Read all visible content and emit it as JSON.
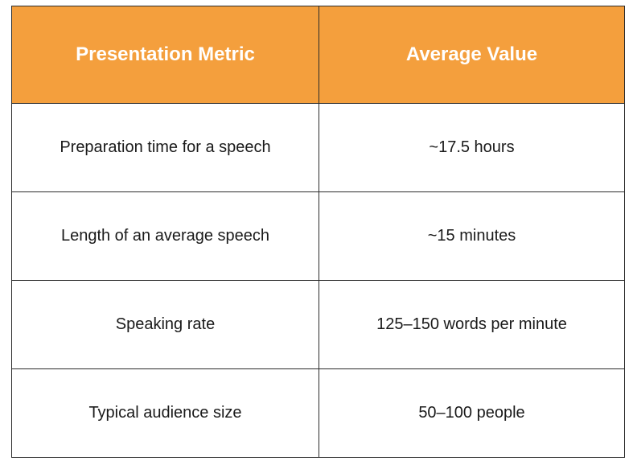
{
  "colors": {
    "header_bg": "#f49f3d",
    "header_text": "#ffffff",
    "border": "#2b2b2b",
    "cell_text": "#1a1a1a"
  },
  "table": {
    "headers": [
      "Presentation Metric",
      "Average Value"
    ],
    "rows": [
      [
        "Preparation time for a speech",
        "~17.5 hours"
      ],
      [
        "Length of an average speech",
        "~15 minutes"
      ],
      [
        "Speaking rate",
        "125–150 words per minute"
      ],
      [
        "Typical audience size",
        "50–100 people"
      ]
    ]
  }
}
